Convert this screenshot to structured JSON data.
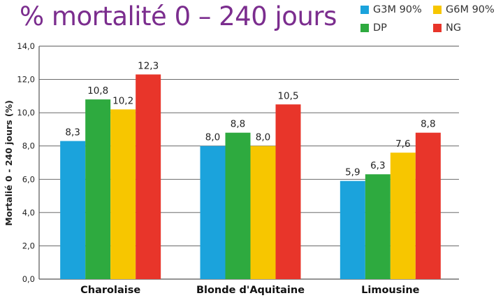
{
  "title": "% mortalité 0 – 240 jours",
  "colors": {
    "title": "#7b2d8e"
  },
  "chart_data": {
    "type": "bar",
    "title": "% mortalité 0 – 240 jours",
    "xlabel": "",
    "ylabel": "Mortalié 0 - 240 jours (%)",
    "ylim": [
      0,
      14
    ],
    "yticks": [
      "0,0",
      "2,0",
      "4,0",
      "6,0",
      "8,0",
      "10,0",
      "12,0",
      "14,0"
    ],
    "grid": true,
    "legend_position": "top-right",
    "categories": [
      "Charolaise",
      "Blonde d'Aquitaine",
      "Limousine"
    ],
    "series": [
      {
        "name": "G3M 90%",
        "color": "#1ba3dc",
        "values": [
          8.3,
          8.0,
          5.9
        ],
        "labels": [
          "8,3",
          "8,0",
          "5,9"
        ]
      },
      {
        "name": "DP",
        "color": "#2eaa3f",
        "values": [
          10.8,
          8.8,
          6.3
        ],
        "labels": [
          "10,8",
          "8,8",
          "6,3"
        ]
      },
      {
        "name": "G6M 90%",
        "color": "#f7c600",
        "values": [
          10.2,
          8.0,
          7.6
        ],
        "labels": [
          "10,2",
          "8,0",
          "7,6"
        ]
      },
      {
        "name": "NG",
        "color": "#e8352a",
        "values": [
          12.3,
          10.5,
          8.8
        ],
        "labels": [
          "12,3",
          "10,5",
          "8,8"
        ]
      }
    ]
  }
}
